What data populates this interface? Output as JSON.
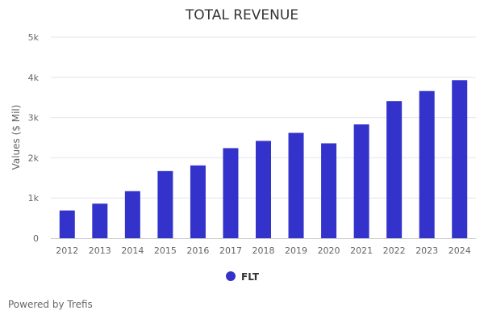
{
  "chart_data": {
    "type": "bar",
    "title": "TOTAL REVENUE",
    "ylabel": "Values ($ Mil)",
    "xlabel": "",
    "categories": [
      "2012",
      "2013",
      "2014",
      "2015",
      "2016",
      "2017",
      "2018",
      "2019",
      "2020",
      "2021",
      "2022",
      "2023",
      "2024"
    ],
    "series": [
      {
        "name": "FLT",
        "values": [
          690,
          860,
          1170,
          1670,
          1810,
          2240,
          2420,
          2620,
          2360,
          2830,
          3410,
          3660,
          3930
        ]
      }
    ],
    "ylim": [
      0,
      5000
    ],
    "yticks": [
      {
        "value": 0,
        "label": "0"
      },
      {
        "value": 1000,
        "label": "1k"
      },
      {
        "value": 2000,
        "label": "2k"
      },
      {
        "value": 3000,
        "label": "3k"
      },
      {
        "value": 4000,
        "label": "4k"
      },
      {
        "value": 5000,
        "label": "5k"
      }
    ],
    "grid": true,
    "legend_position": "bottom-center",
    "colors": {
      "bar": "#3333cc",
      "grid": "#e6e6e6",
      "axis": "#cccccc"
    }
  },
  "credits": "Powered by Trefis"
}
